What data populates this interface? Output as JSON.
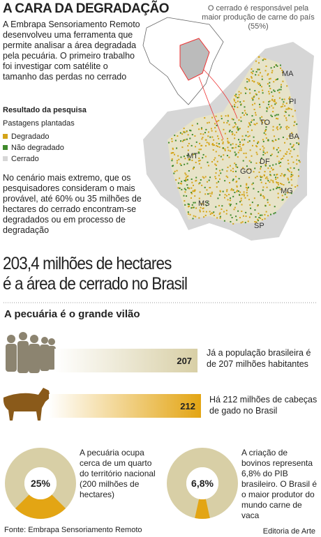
{
  "header": {
    "title": "A CARA DA DEGRADAÇÃO",
    "intro": "A Embrapa Sensoriamento Remoto desenvolveu uma ferramenta que permite analisar a área degradada pela pecuária. O primeiro trabalho foi investigar com satélite o tamanho das perdas no cerrado"
  },
  "legend": {
    "heading": "Resultado da pesquisa",
    "subheading": "Pastagens plantadas",
    "items": [
      {
        "label": "Degradado",
        "color": "#d4a418"
      },
      {
        "label": "Não degradado",
        "color": "#3f8a2c"
      },
      {
        "label": "Cerrado",
        "color": "#d6d6d6"
      }
    ]
  },
  "scenario": "No cenário mais extremo, que os pesquisadores consideram o mais provável, até 60% ou 35 milhões de hectares do cerrado encontram-se degradados ou em processo de degradação",
  "map": {
    "caption": "O cerrado é responsável pela maior produção de carne do país (55%)",
    "states": [
      "MA",
      "PI",
      "TO",
      "BA",
      "MT",
      "GO",
      "DF",
      "MG",
      "MS",
      "SP"
    ]
  },
  "headline": [
    "203,4 milhões de hectares",
    "é a área de cerrado no Brasil"
  ],
  "section_title": "A pecuária é o grande vilão",
  "bars": [
    {
      "value": 207,
      "text": "Já a população brasileira é de 207 milhões habitantes",
      "color": "#d8cfa6"
    },
    {
      "value": 212,
      "text": "Há 212 milhões de cabeças de gado no Brasil",
      "color": "#e3a514"
    }
  ],
  "donuts": [
    {
      "value": 25,
      "value_label": "25%",
      "text": "A pecuária ocupa cerca de um quarto do território nacional (200 milhões de hectares)"
    },
    {
      "value": 6.8,
      "value_label": "6,8%",
      "text": "A criação de bovinos representa 6,8% do PIB brasileiro. O Brasil é o maior produtor do mundo carne de vaca"
    }
  ],
  "footer": {
    "source": "Fonte: Embrapa Sensoriamento Remoto",
    "credit": "Editoria de Arte"
  }
}
